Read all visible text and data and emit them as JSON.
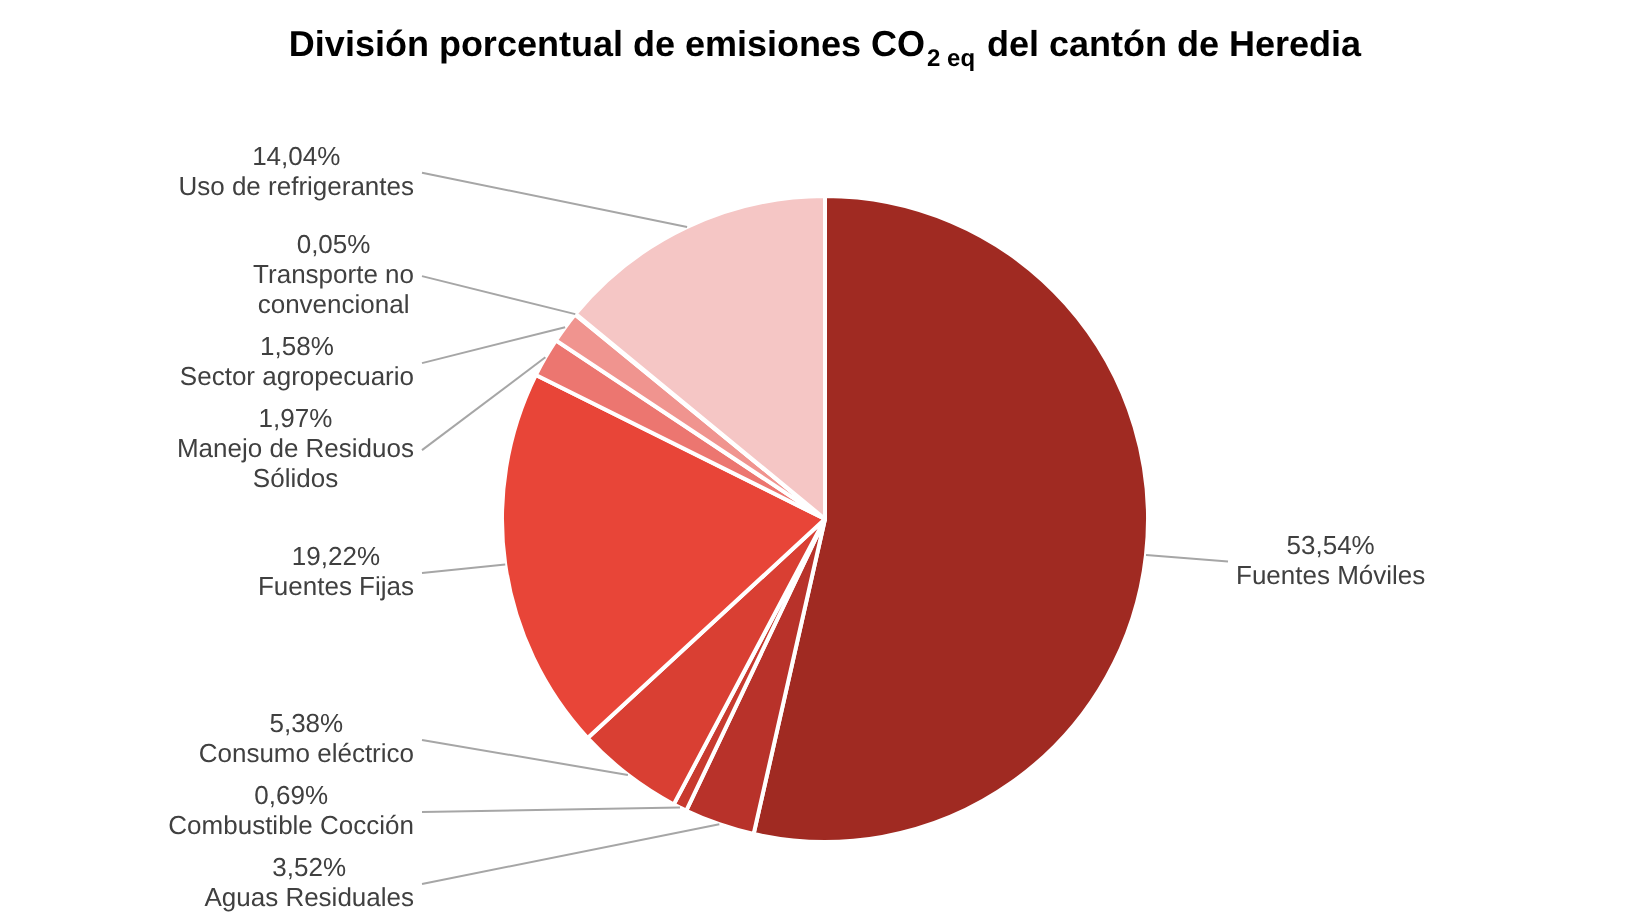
{
  "chart_data": {
    "type": "pie",
    "title": "División porcentual de emisiones CO$_{2 eq}$ del cantón de Heredia",
    "categories": [
      "Fuentes Móviles",
      "Aguas Residuales",
      "Combustible Cocción",
      "Consumo eléctrico",
      "Fuentes Fijas",
      "Manejo de Residuos Sólidos",
      "Sector agropecuario",
      "Transporte no convencional",
      "Uso de refrigerantes"
    ],
    "values": [
      53.54,
      3.52,
      0.69,
      5.38,
      19.22,
      1.97,
      1.58,
      0.05,
      14.04
    ],
    "value_labels": [
      "53,54%",
      "3,52%",
      "0,69%",
      "5,38%",
      "19,22%",
      "1,97%",
      "1,58%",
      "0,05%",
      "14,04%"
    ],
    "colors": [
      "#a02a22",
      "#b8322a",
      "#c83a2f",
      "#d93f33",
      "#e84538",
      "#ec7670",
      "#f0948f",
      "#f3b3b0",
      "#f5c6c5"
    ],
    "legend": false
  }
}
